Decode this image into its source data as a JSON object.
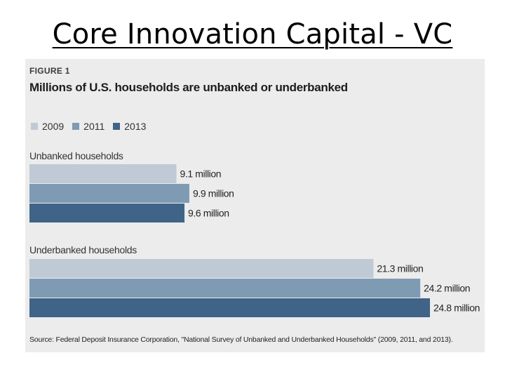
{
  "slide": {
    "title": "Core Innovation Capital - VC"
  },
  "figure": {
    "label": "FIGURE 1",
    "source": "Source: Federal Deposit Insurance Corporation, \"National Survey of Unbanked and Underbanked Households\" (2009, 2011, and 2013)."
  },
  "colors": {
    "2009": "#bfcad6",
    "2011": "#7f9bb4",
    "2013": "#3f6487"
  },
  "chart_data": {
    "type": "bar",
    "orientation": "horizontal",
    "title": "Millions of U.S. households are unbanked or underbanked",
    "legend": [
      "2009",
      "2011",
      "2013"
    ],
    "unit": "million",
    "groups": [
      {
        "name": "Unbanked households",
        "values": [
          {
            "year": "2009",
            "value": 9.1,
            "label": "9.1 million"
          },
          {
            "year": "2011",
            "value": 9.9,
            "label": "9.9 million"
          },
          {
            "year": "2013",
            "value": 9.6,
            "label": "9.6 million"
          }
        ]
      },
      {
        "name": "Underbanked households",
        "values": [
          {
            "year": "2009",
            "value": 21.3,
            "label": "21.3 million"
          },
          {
            "year": "2011",
            "value": 24.2,
            "label": "24.2 million"
          },
          {
            "year": "2013",
            "value": 24.8,
            "label": "24.8 million"
          }
        ]
      }
    ],
    "xlim": [
      0,
      24.8
    ]
  }
}
